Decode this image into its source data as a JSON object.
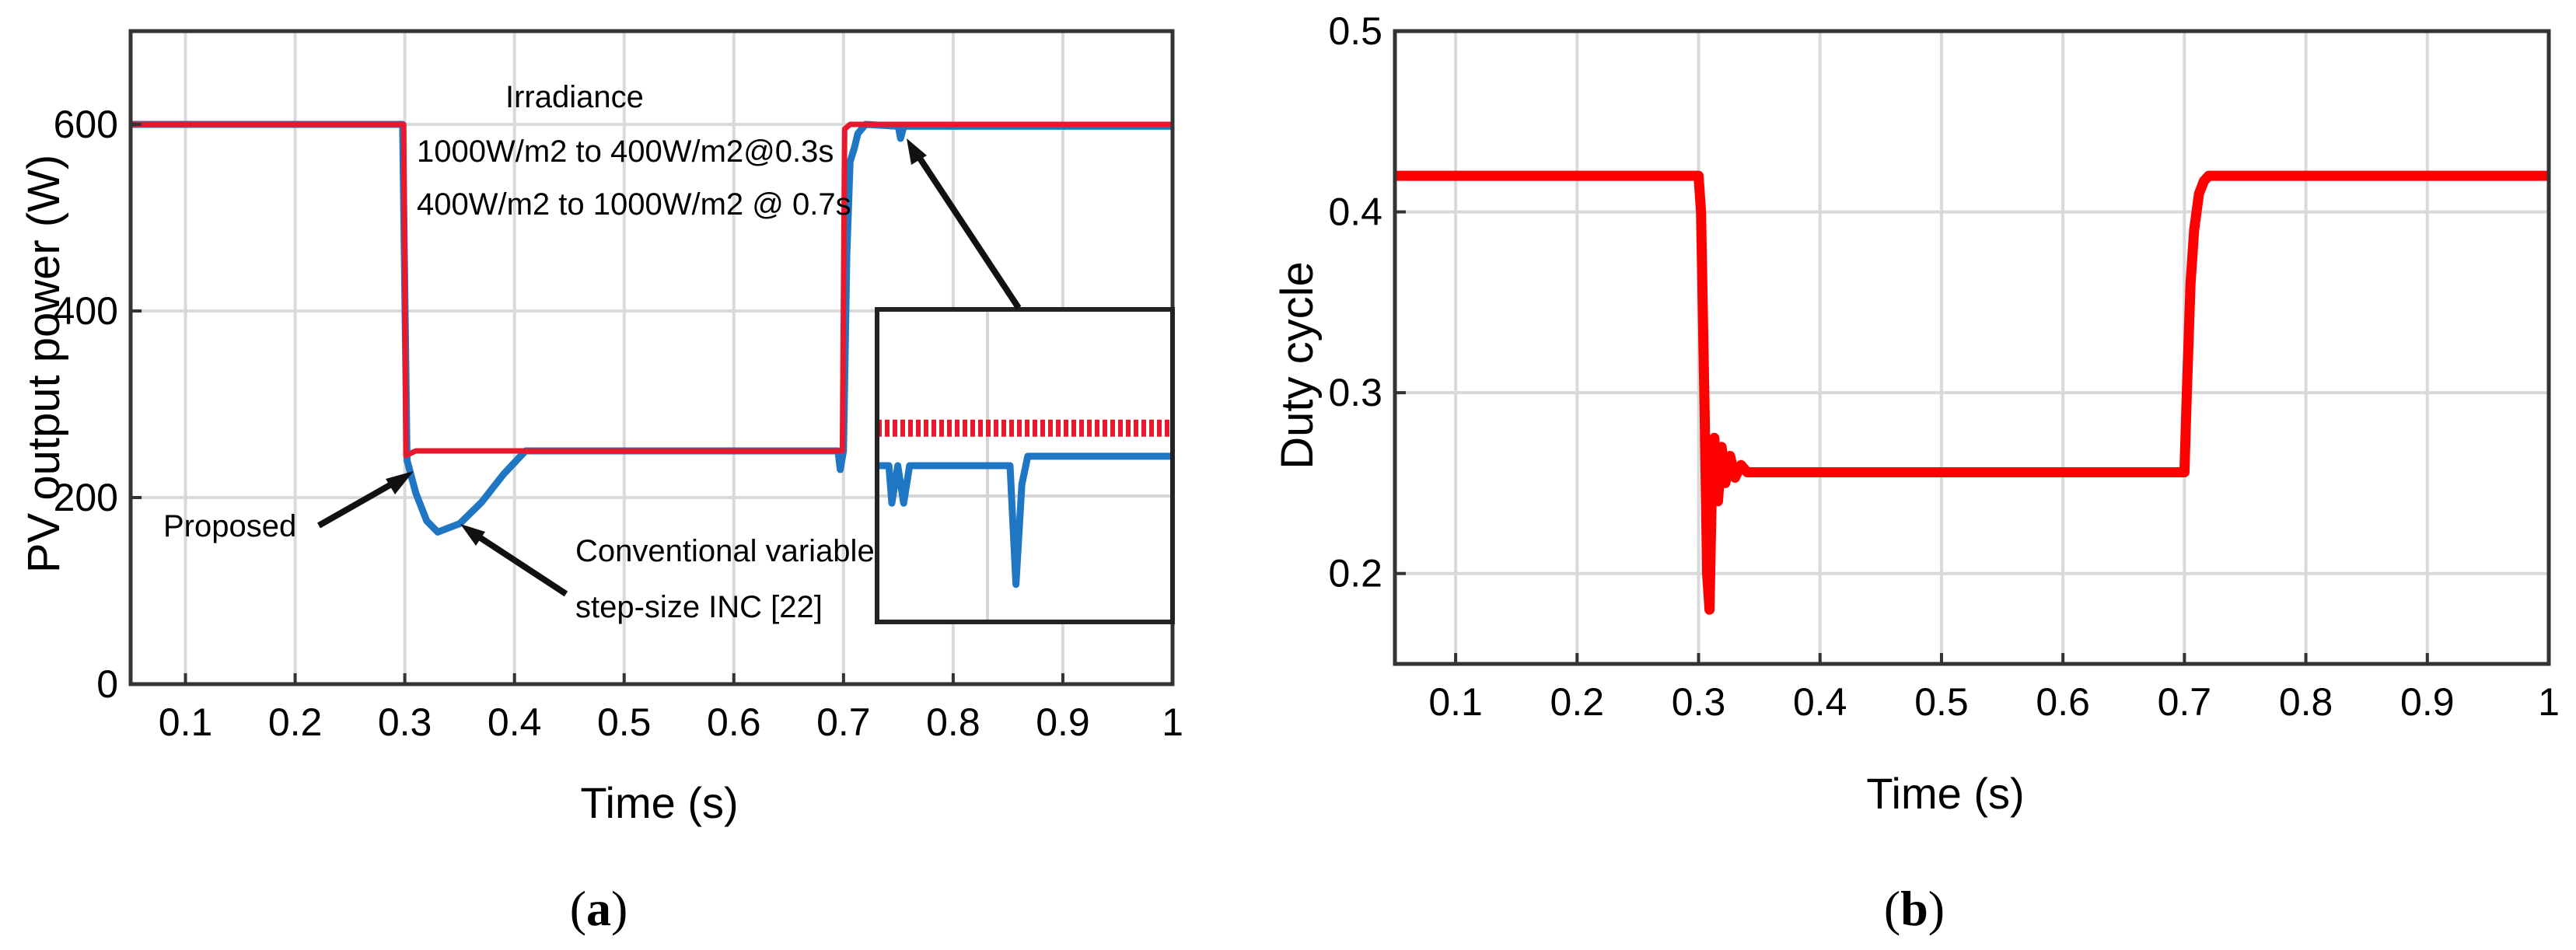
{
  "chart_data": [
    {
      "type": "line",
      "caption_letter": "a",
      "xlabel": "Time (s)",
      "ylabel": "PV output power (W)",
      "xlim": [
        0.05,
        1.0
      ],
      "ylim": [
        0,
        700
      ],
      "xticks": [
        0.1,
        0.2,
        0.3,
        0.4,
        0.5,
        0.6,
        0.7,
        0.8,
        0.9,
        1
      ],
      "xtick_labels": [
        "0.1",
        "0.2",
        "0.3",
        "0.4",
        "0.5",
        "0.6",
        "0.7",
        "0.8",
        "0.9",
        "1"
      ],
      "yticks": [
        0,
        200,
        400,
        600
      ],
      "ytick_labels": [
        "0",
        "200",
        "400",
        "600"
      ],
      "grid": true,
      "series": [
        {
          "color": "#1f77c4",
          "points": [
            [
              0.05,
              600
            ],
            [
              0.298,
              600
            ],
            [
              0.302,
              240
            ],
            [
              0.31,
              205
            ],
            [
              0.32,
              175
            ],
            [
              0.33,
              163
            ],
            [
              0.35,
              172
            ],
            [
              0.37,
              195
            ],
            [
              0.39,
              225
            ],
            [
              0.41,
              250
            ],
            [
              0.695,
              250
            ],
            [
              0.697,
              230
            ],
            [
              0.7,
              250
            ],
            [
              0.703,
              460
            ],
            [
              0.706,
              560
            ],
            [
              0.71,
              575
            ],
            [
              0.713,
              590
            ],
            [
              0.72,
              600
            ],
            [
              0.75,
              598
            ],
            [
              0.752,
              585
            ],
            [
              0.755,
              598
            ],
            [
              1.0,
              598
            ]
          ]
        },
        {
          "color": "#e8192c",
          "points": [
            [
              0.05,
              600
            ],
            [
              0.299,
              600
            ],
            [
              0.301,
              245
            ],
            [
              0.31,
              250
            ],
            [
              0.699,
              250
            ],
            [
              0.701,
              595
            ],
            [
              0.706,
              600
            ],
            [
              1.0,
              600
            ]
          ]
        }
      ],
      "inset": {
        "blue_trace": [
          [
            0.0,
            0.5
          ],
          [
            0.04,
            0.5
          ],
          [
            0.05,
            0.62
          ],
          [
            0.07,
            0.5
          ],
          [
            0.09,
            0.62
          ],
          [
            0.11,
            0.5
          ],
          [
            0.45,
            0.5
          ],
          [
            0.47,
            0.88
          ],
          [
            0.49,
            0.56
          ],
          [
            0.51,
            0.47
          ],
          [
            1.0,
            0.47
          ]
        ],
        "red_trace": [
          [
            0.0,
            0.38
          ],
          [
            1.0,
            0.38
          ]
        ]
      },
      "annotations": {
        "irradiance_title": "Irradiance",
        "irradiance_line1": "1000W/m2 to 400W/m2@0.3s",
        "irradiance_line2": "400W/m2 to 1000W/m2 @ 0.7s",
        "proposed": "Proposed",
        "conventional_line1": "Conventional variable",
        "conventional_line2": "step-size INC [22]"
      }
    },
    {
      "type": "line",
      "caption_letter": "b",
      "xlabel": "Time (s)",
      "ylabel": "Duty cycle",
      "xlim": [
        0.05,
        1.0
      ],
      "ylim": [
        0.15,
        0.5
      ],
      "xticks": [
        0.1,
        0.2,
        0.3,
        0.4,
        0.5,
        0.6,
        0.7,
        0.8,
        0.9,
        1
      ],
      "xtick_labels": [
        "0.1",
        "0.2",
        "0.3",
        "0.4",
        "0.5",
        "0.6",
        "0.7",
        "0.8",
        "0.9",
        "1"
      ],
      "yticks": [
        0.2,
        0.3,
        0.4,
        0.5
      ],
      "ytick_labels": [
        "0.2",
        "0.3",
        "0.4",
        "0.5"
      ],
      "grid": true,
      "series": [
        {
          "color": "#ff0000",
          "points": [
            [
              0.05,
              0.42
            ],
            [
              0.3,
              0.42
            ],
            [
              0.302,
              0.4
            ],
            [
              0.305,
              0.29
            ],
            [
              0.307,
              0.2
            ],
            [
              0.309,
              0.18
            ],
            [
              0.311,
              0.25
            ],
            [
              0.313,
              0.275
            ],
            [
              0.316,
              0.24
            ],
            [
              0.319,
              0.27
            ],
            [
              0.322,
              0.25
            ],
            [
              0.326,
              0.265
            ],
            [
              0.33,
              0.253
            ],
            [
              0.335,
              0.26
            ],
            [
              0.34,
              0.256
            ],
            [
              0.7,
              0.256
            ],
            [
              0.702,
              0.3
            ],
            [
              0.705,
              0.36
            ],
            [
              0.708,
              0.39
            ],
            [
              0.712,
              0.41
            ],
            [
              0.716,
              0.417
            ],
            [
              0.72,
              0.42
            ],
            [
              1.0,
              0.42
            ]
          ]
        }
      ]
    }
  ]
}
